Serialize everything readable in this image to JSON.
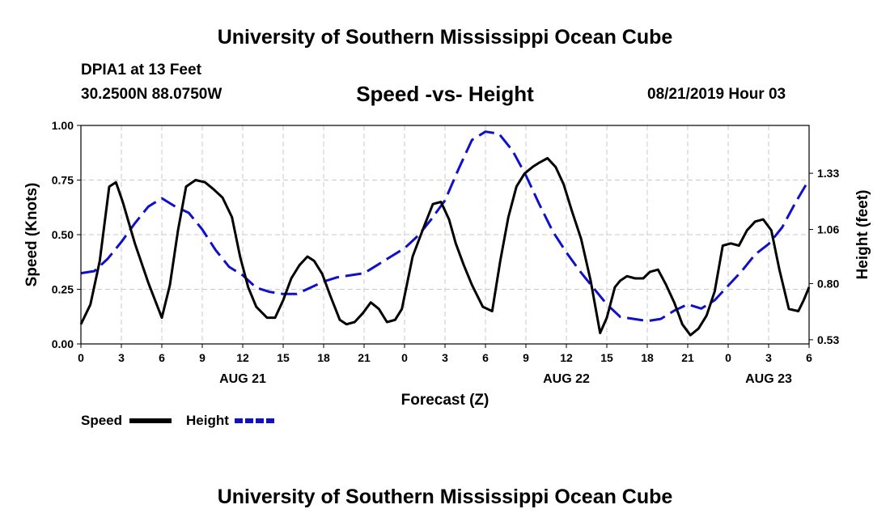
{
  "header": {
    "title": "University of Southern Mississippi Ocean Cube",
    "station": "DPIA1 at 13 Feet",
    "coords": "30.2500N 88.0750W",
    "datetime": "08/21/2019 Hour 03"
  },
  "footer": {
    "title": "University of Southern Mississippi Ocean Cube"
  },
  "colors": {
    "speed": "#000000",
    "height": "#1010c8",
    "grid": "#c8c8c8"
  },
  "chart_data": {
    "type": "line",
    "title": "Speed -vs- Height",
    "xlabel": "Forecast (Z)",
    "ylabel": "Speed (Knots)",
    "y2label": "Height (feet)",
    "xlim": [
      0,
      54
    ],
    "ylim": [
      0,
      1.0
    ],
    "y2lim": [
      0.51,
      1.56
    ],
    "x_ticks": [
      0,
      3,
      6,
      9,
      12,
      15,
      18,
      21,
      24,
      27,
      30,
      33,
      36,
      39,
      42,
      45,
      48,
      51,
      54
    ],
    "x_tick_labels": [
      "0",
      "3",
      "6",
      "9",
      "12",
      "15",
      "18",
      "21",
      "0",
      "3",
      "6",
      "9",
      "12",
      "15",
      "18",
      "21",
      "0",
      "3",
      "6"
    ],
    "y_ticks": [
      0,
      0.25,
      0.5,
      0.75,
      1.0
    ],
    "y_tick_labels": [
      "0.00",
      "0.25",
      "0.50",
      "0.75",
      "1.00"
    ],
    "y2_ticks": [
      0.53,
      0.8,
      1.06,
      1.33
    ],
    "y2_tick_labels": [
      "0.53",
      "0.80",
      "1.06",
      "1.33"
    ],
    "date_labels": [
      {
        "x": 12,
        "label": "AUG 21"
      },
      {
        "x": 36,
        "label": "AUG 22"
      },
      {
        "x": 51,
        "label": "AUG 23"
      }
    ],
    "legend_position": "bottom-left",
    "series": [
      {
        "name": "Speed",
        "axis": "left",
        "style": "solid",
        "x": [
          0,
          0.7,
          1.4,
          2.1,
          2.6,
          3.1,
          4,
          5,
          6,
          6.6,
          7.2,
          7.8,
          8.5,
          9.2,
          9.8,
          10.5,
          11.2,
          11.8,
          12.4,
          13,
          13.8,
          14.4,
          15,
          15.6,
          16.2,
          16.8,
          17.3,
          17.9,
          18.5,
          19.2,
          19.7,
          20.3,
          20.9,
          21.5,
          22.1,
          22.7,
          23.3,
          23.8,
          24.6,
          25.4,
          26.1,
          26.7,
          27.3,
          27.8,
          28.4,
          29,
          29.8,
          30.5,
          31.1,
          31.7,
          32.3,
          32.9,
          33.5,
          34,
          34.6,
          35.2,
          35.8,
          36.4,
          37.1,
          37.8,
          38.5,
          39,
          39.6,
          40,
          40.5,
          41.1,
          41.7,
          42.2,
          42.8,
          43.4,
          44,
          44.6,
          45.2,
          45.8,
          46.4,
          47,
          47.6,
          48.2,
          48.8,
          49.4,
          50,
          50.6,
          51.2,
          51.8,
          52.5,
          53.2,
          53.6,
          54
        ],
        "y": [
          0.09,
          0.18,
          0.38,
          0.72,
          0.74,
          0.65,
          0.46,
          0.28,
          0.12,
          0.27,
          0.52,
          0.72,
          0.75,
          0.74,
          0.71,
          0.67,
          0.58,
          0.4,
          0.26,
          0.17,
          0.12,
          0.12,
          0.2,
          0.3,
          0.36,
          0.4,
          0.38,
          0.32,
          0.22,
          0.11,
          0.09,
          0.1,
          0.14,
          0.19,
          0.16,
          0.1,
          0.11,
          0.16,
          0.4,
          0.53,
          0.64,
          0.65,
          0.57,
          0.46,
          0.36,
          0.27,
          0.17,
          0.15,
          0.38,
          0.58,
          0.72,
          0.78,
          0.81,
          0.83,
          0.85,
          0.81,
          0.73,
          0.61,
          0.48,
          0.29,
          0.05,
          0.12,
          0.26,
          0.29,
          0.31,
          0.3,
          0.3,
          0.33,
          0.34,
          0.27,
          0.19,
          0.09,
          0.04,
          0.07,
          0.13,
          0.24,
          0.45,
          0.46,
          0.45,
          0.52,
          0.56,
          0.57,
          0.52,
          0.34,
          0.16,
          0.15,
          0.2,
          0.26
        ]
      },
      {
        "name": "Height",
        "axis": "right",
        "style": "dashed",
        "x": [
          0,
          1,
          2,
          3,
          4,
          5,
          6,
          7,
          8,
          9,
          10,
          11,
          12,
          13,
          14,
          15,
          16,
          17,
          18,
          19,
          20,
          21,
          22,
          23,
          24,
          25,
          26,
          27,
          28,
          29,
          30,
          31,
          32,
          33,
          34,
          35,
          36,
          37,
          38,
          39,
          40,
          41,
          42,
          43,
          44,
          45,
          46,
          47,
          48,
          49,
          50,
          51,
          52,
          53,
          54
        ],
        "y": [
          0.85,
          0.86,
          0.92,
          1.0,
          1.09,
          1.17,
          1.21,
          1.17,
          1.14,
          1.06,
          0.96,
          0.88,
          0.84,
          0.78,
          0.76,
          0.75,
          0.75,
          0.78,
          0.81,
          0.83,
          0.84,
          0.85,
          0.89,
          0.93,
          0.97,
          1.03,
          1.11,
          1.2,
          1.35,
          1.49,
          1.53,
          1.52,
          1.44,
          1.32,
          1.18,
          1.05,
          0.95,
          0.86,
          0.78,
          0.7,
          0.64,
          0.63,
          0.62,
          0.63,
          0.67,
          0.7,
          0.68,
          0.72,
          0.79,
          0.86,
          0.94,
          0.99,
          1.07,
          1.19,
          1.3
        ]
      }
    ]
  }
}
